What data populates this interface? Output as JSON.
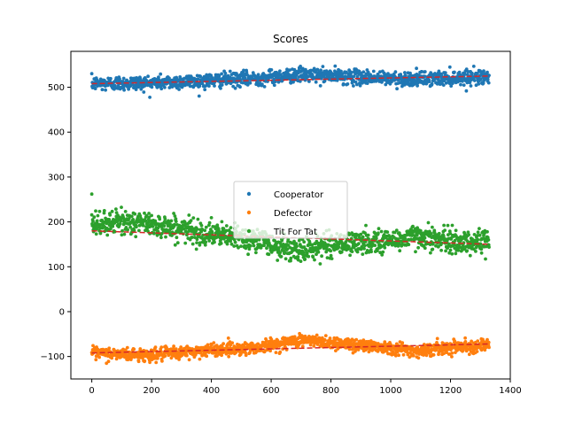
{
  "chart_data": {
    "type": "scatter",
    "title": "Scores",
    "xlabel": "",
    "ylabel": "",
    "xlim": [
      -70,
      1400
    ],
    "ylim": [
      -150,
      580
    ],
    "xticks": [
      0,
      200,
      400,
      600,
      800,
      1000,
      1200,
      1400
    ],
    "yticks": [
      -100,
      0,
      100,
      200,
      300,
      400,
      500
    ],
    "grid": false,
    "legend_position": "center",
    "point_count": 1330,
    "series": [
      {
        "name": "Cooperator",
        "color": "#1f77b4",
        "trend": {
          "x": [
            0,
            200,
            400,
            550,
            700,
            850,
            1000,
            1100,
            1200,
            1330
          ],
          "y": [
            508,
            510,
            515,
            520,
            528,
            524,
            519,
            518,
            521,
            525
          ]
        },
        "spread": 8,
        "trend_line": {
          "color": "#d62728",
          "style": "dashed",
          "x": [
            0,
            1330
          ],
          "y": [
            508,
            525
          ]
        }
      },
      {
        "name": "Defector",
        "color": "#ff7f0e",
        "trend": {
          "x": [
            0,
            200,
            400,
            550,
            700,
            850,
            1000,
            1100,
            1200,
            1330
          ],
          "y": [
            -93,
            -97,
            -85,
            -80,
            -63,
            -72,
            -80,
            -88,
            -78,
            -75
          ]
        },
        "spread": 7,
        "trend_line": {
          "color": "#d62728",
          "style": "dashed",
          "x": [
            0,
            1330
          ],
          "y": [
            -92,
            -72
          ]
        }
      },
      {
        "name": "Tit For Tat",
        "color": "#2ca02c",
        "trend": {
          "x": [
            0,
            100,
            200,
            400,
            550,
            680,
            800,
            1000,
            1100,
            1200,
            1330
          ],
          "y": [
            192,
            200,
            195,
            172,
            160,
            135,
            150,
            158,
            170,
            155,
            155
          ]
        },
        "spread": 13,
        "trend_line": {
          "color": "#d62728",
          "style": "dashed",
          "x": [
            0,
            1330
          ],
          "y": [
            180,
            150
          ]
        },
        "outliers": [
          {
            "x": 0,
            "y": 262
          }
        ]
      }
    ]
  }
}
